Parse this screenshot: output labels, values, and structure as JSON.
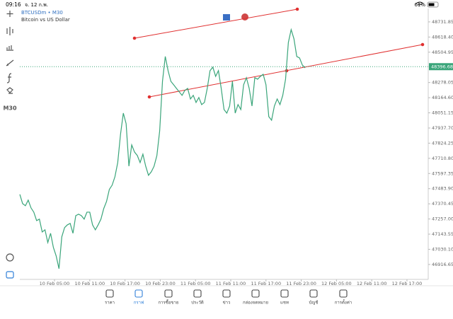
{
  "status_bar": {
    "time": "09:16",
    "date": "จ. 12 ก.พ.",
    "battery": "61%"
  },
  "chart_header": {
    "symbol": "BTCUSDm • M30",
    "description": "Bitcoin vs US Dollar"
  },
  "sidebar": {
    "timeframe": "M30"
  },
  "chart_data": {
    "type": "line",
    "color": "#3aa57a",
    "values": [
      47441,
      47372,
      47356,
      47398,
      47340,
      47308,
      47245,
      47256,
      47160,
      47176,
      47081,
      47150,
      47044,
      46980,
      46885,
      47123,
      47192,
      47213,
      47224,
      47150,
      47282,
      47293,
      47282,
      47256,
      47308,
      47308,
      47213,
      47176,
      47213,
      47256,
      47335,
      47388,
      47478,
      47510,
      47573,
      47679,
      47891,
      48049,
      47970,
      47652,
      47811,
      47758,
      47732,
      47679,
      47742,
      47652,
      47584,
      47610,
      47652,
      47732,
      47917,
      48287,
      48473,
      48367,
      48287,
      48261,
      48234,
      48208,
      48182,
      48219,
      48234,
      48155,
      48182,
      48129,
      48166,
      48113,
      48129,
      48234,
      48367,
      48393,
      48324,
      48367,
      48234,
      48076,
      48049,
      48102,
      48287,
      48049,
      48113,
      48076,
      48261,
      48314,
      48234,
      48102,
      48314,
      48303,
      48324,
      48340,
      48261,
      48023,
      47996,
      48102,
      48155,
      48113,
      48182,
      48303,
      48578,
      48674,
      48605,
      48473,
      48462,
      48409,
      48388
    ],
    "xlim": [
      0,
      146
    ],
    "xticks": [
      {
        "value": 12.4,
        "label": "10 Feb 05:00"
      },
      {
        "value": 25,
        "label": "10 Feb 11:00"
      },
      {
        "value": 37.6,
        "label": "10 Feb 17:00"
      },
      {
        "value": 50.2,
        "label": "10 Feb 23:00"
      },
      {
        "value": 62.8,
        "label": "11 Feb 05:00"
      },
      {
        "value": 75.4,
        "label": "11 Feb 11:00"
      },
      {
        "value": 88,
        "label": "11 Feb 17:00"
      },
      {
        "value": 100.6,
        "label": "11 Feb 23:00"
      },
      {
        "value": 113.2,
        "label": "12 Feb 05:00"
      },
      {
        "value": 125.8,
        "label": "12 Feb 11:00"
      },
      {
        "value": 138.4,
        "label": "12 Feb 17:00"
      }
    ],
    "ylim": [
      46805,
      48832
    ],
    "yticks": [
      48731.85,
      {
        "value": 48618.4,
        "label": "48618.40"
      },
      48504.95,
      48278.05,
      {
        "value": 48164.6,
        "label": "48164.60"
      },
      48051.15,
      {
        "value": 47937.7,
        "label": "47937.70"
      },
      47824.25,
      {
        "value": 47710.8,
        "label": "47710.80"
      },
      47597.35,
      {
        "value": 47483.9,
        "label": "47483.90"
      },
      47370.45,
      {
        "value": 47257,
        "label": "47257.00"
      },
      47143.55,
      {
        "value": 47030.1,
        "label": "47030.10"
      },
      46916.65
    ],
    "current_price": 48396.68
  },
  "nav": {
    "items": [
      {
        "label": "ราคา"
      },
      {
        "label": "กราฟ",
        "active": true
      },
      {
        "label": "การซื้อขาย"
      },
      {
        "label": "ประวัติ"
      },
      {
        "label": "ข่าว"
      },
      {
        "label": "กล่องจดหมาย"
      },
      {
        "label": "แชท"
      },
      {
        "label": "บัญชี"
      },
      {
        "label": "การตั้งค่า"
      }
    ]
  }
}
